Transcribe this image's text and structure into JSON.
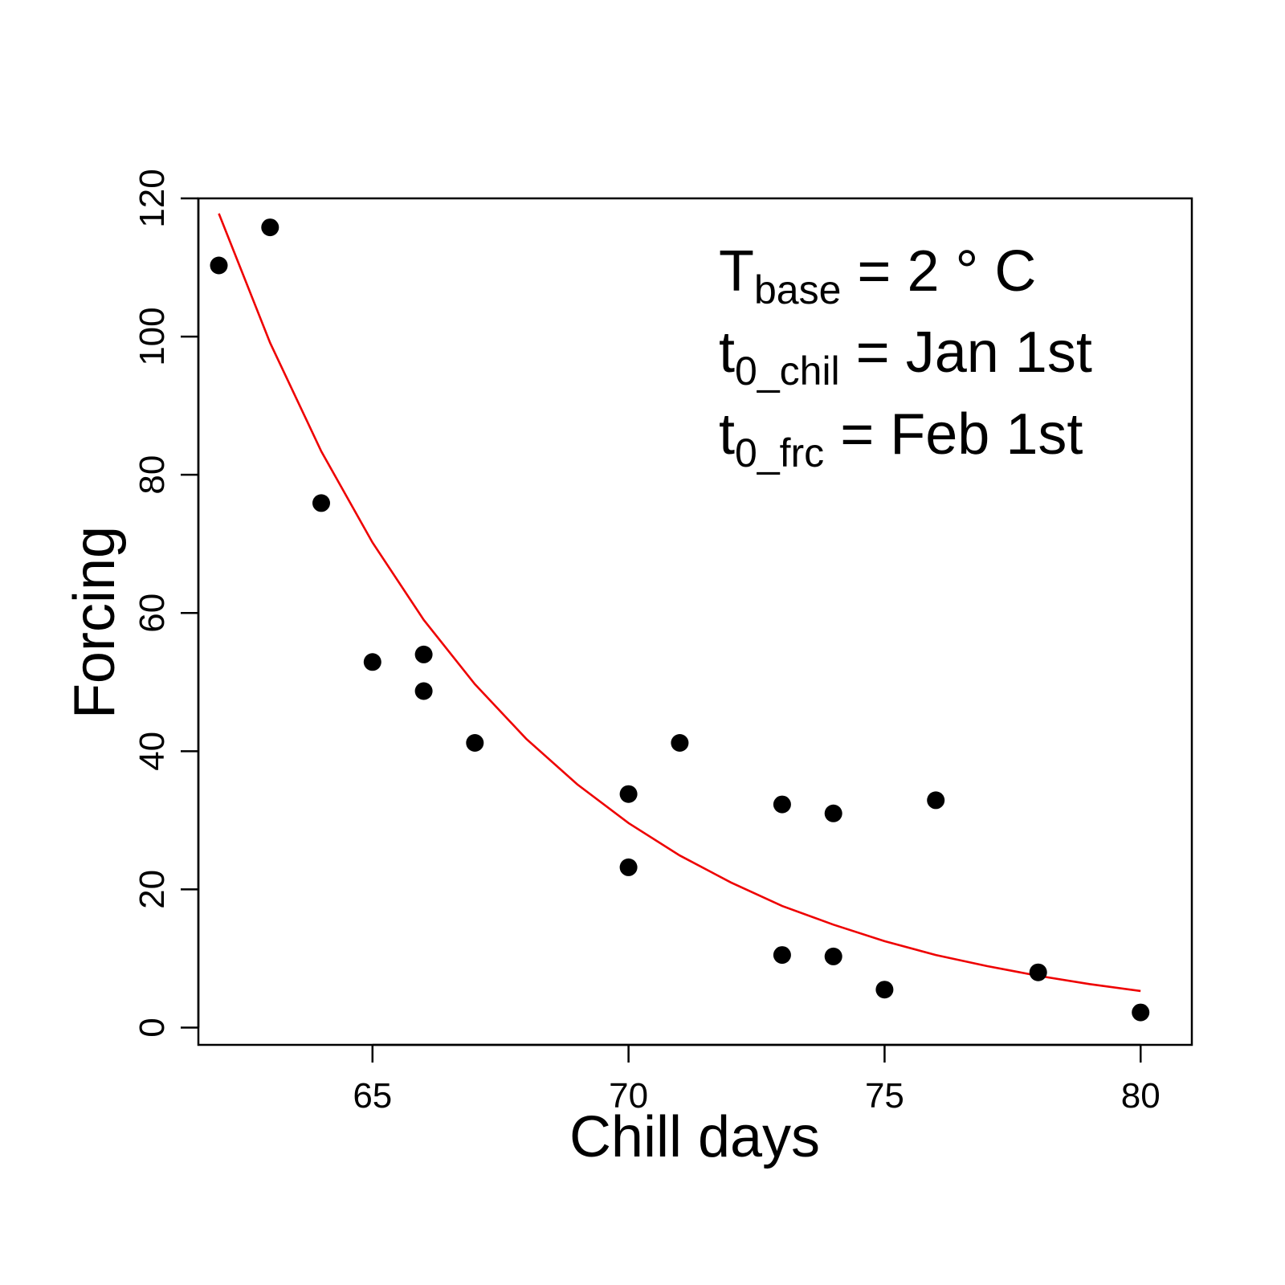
{
  "chart_data": {
    "type": "scatter",
    "title": "",
    "xlabel": "Chill days",
    "ylabel": "Forcing",
    "xlim": [
      61.6,
      81.0
    ],
    "ylim": [
      -2.5,
      120
    ],
    "x_ticks": [
      "65",
      "70",
      "75",
      "80"
    ],
    "y_ticks": [
      "0",
      "20",
      "40",
      "60",
      "80",
      "100",
      "120"
    ],
    "grid": false,
    "legend": "none",
    "annotations": [
      {
        "main": "T",
        "sub": "base",
        "rest": " = 2 ° C"
      },
      {
        "main": "t",
        "sub": "0_chil",
        "rest": " = Jan 1st"
      },
      {
        "main": "t",
        "sub": "0_frc",
        "rest": " = Feb 1st"
      }
    ],
    "points": {
      "color": "#000000",
      "x": [
        62,
        63,
        64,
        65,
        66,
        66,
        67,
        70,
        70,
        71,
        73,
        73,
        74,
        74,
        75,
        76,
        78,
        80
      ],
      "y": [
        110.3,
        115.8,
        75.9,
        52.9,
        54.0,
        48.7,
        41.2,
        33.8,
        23.2,
        41.2,
        32.3,
        10.5,
        31.0,
        10.3,
        5.5,
        32.9,
        8.0,
        2.2
      ]
    },
    "fit_curve": {
      "color": "#ee0000",
      "x": [
        62,
        63,
        64,
        65,
        66,
        67,
        68,
        69,
        70,
        71,
        72,
        73,
        74,
        75,
        76,
        77,
        78,
        79,
        80
      ],
      "y": [
        117.8,
        99.1,
        83.4,
        70.2,
        59.0,
        49.7,
        41.8,
        35.2,
        29.6,
        24.9,
        21.0,
        17.6,
        14.9,
        12.5,
        10.5,
        8.9,
        7.5,
        6.3,
        5.3
      ]
    }
  }
}
